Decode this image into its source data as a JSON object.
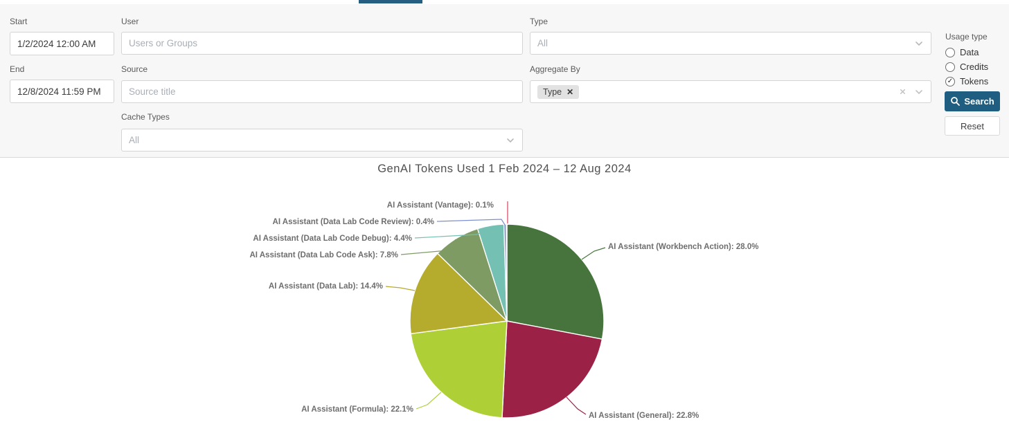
{
  "filters": {
    "start": {
      "label": "Start",
      "value": "1/2/2024 12:00 AM"
    },
    "end": {
      "label": "End",
      "value": "12/8/2024 11:59 PM"
    },
    "user": {
      "label": "User",
      "placeholder": "Users or Groups"
    },
    "source": {
      "label": "Source",
      "placeholder": "Source title"
    },
    "cache_types": {
      "label": "Cache Types",
      "placeholder": "All"
    },
    "type": {
      "label": "Type",
      "placeholder": "All"
    },
    "aggregate_by": {
      "label": "Aggregate By",
      "tag": "Type",
      "tag_remove": "✕"
    },
    "usage_type": {
      "label": "Usage type",
      "options": [
        {
          "label": "Data",
          "selected": false
        },
        {
          "label": "Credits",
          "selected": false
        },
        {
          "label": "Tokens",
          "selected": true
        }
      ]
    },
    "search_label": "Search",
    "reset_label": "Reset"
  },
  "colors": {
    "primary_button": "#1f5e80",
    "active_tab": "#255e80",
    "panel_background": "#f7f7f7",
    "label_text": "#6e6e6e"
  },
  "chart_data": {
    "type": "pie",
    "title": "GenAI Tokens Used 1 Feb 2024 – 12 Aug 2024",
    "start_angle": 0,
    "direction": "clockwise",
    "legend": "none",
    "series": [
      {
        "name": "AI Assistant (Workbench Action)",
        "value": 28.0,
        "color": "#47743d"
      },
      {
        "name": "AI Assistant (General)",
        "value": 22.8,
        "color": "#9c2146"
      },
      {
        "name": "AI Assistant (Formula)",
        "value": 22.1,
        "color": "#aed036"
      },
      {
        "name": "AI Assistant (Data Lab)",
        "value": 14.4,
        "color": "#b5ab2d"
      },
      {
        "name": "AI Assistant (Data Lab Code Ask)",
        "value": 7.8,
        "color": "#7e9b64"
      },
      {
        "name": "AI Assistant (Data Lab Code Debug)",
        "value": 4.4,
        "color": "#74c0b2"
      },
      {
        "name": "AI Assistant (Data Lab Code Review)",
        "value": 0.4,
        "color": "#7b8fce"
      },
      {
        "name": "AI Assistant (Vantage)",
        "value": 0.1,
        "color": "#e23a5e"
      }
    ]
  }
}
